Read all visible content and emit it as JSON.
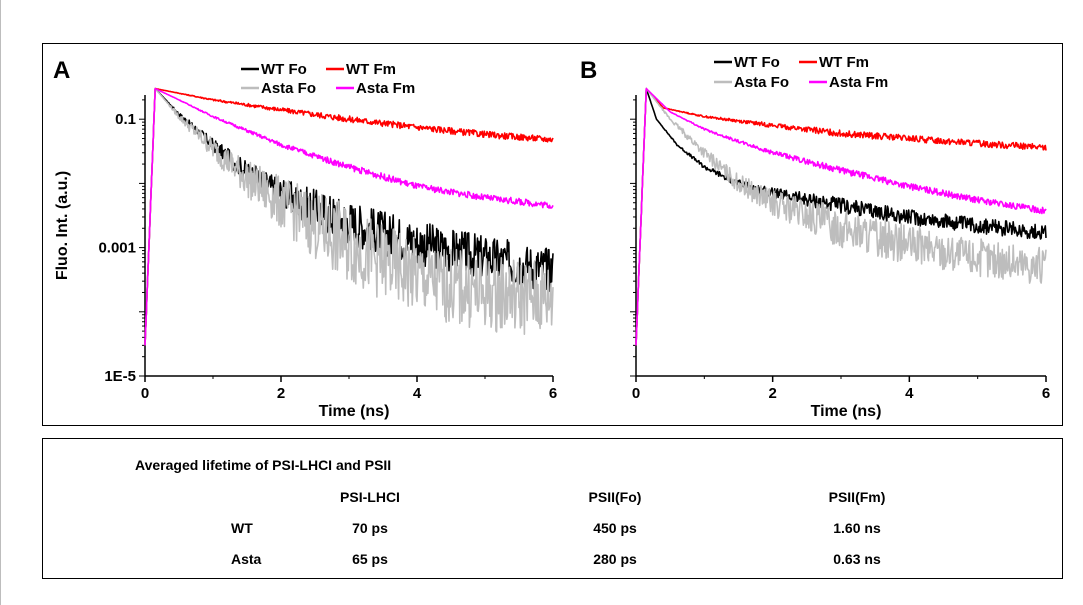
{
  "chart_data": [
    {
      "type": "line",
      "panel_label": "A",
      "xlabel": "Time (ns)",
      "ylabel": "Fluo. Int. (a.u.)",
      "xlim": [
        0,
        6
      ],
      "ylim": [
        1e-05,
        1
      ],
      "yscale": "log",
      "xticks": [
        0,
        2,
        4,
        6
      ],
      "yticks": [
        {
          "value": 1e-05,
          "label": "1E-5"
        },
        {
          "value": 0.001,
          "label": "0.001"
        },
        {
          "value": 0.1,
          "label": "0.1"
        }
      ],
      "legend_position": "top",
      "series": [
        {
          "name": "WT Fo",
          "color": "#000000",
          "noise": 0.35,
          "x": [
            0,
            0.15,
            0.5,
            1.0,
            1.5,
            2.0,
            2.5,
            3.0,
            3.5,
            4.0,
            4.5,
            5.0,
            5.5,
            6.0
          ],
          "y": [
            3e-05,
            0.3,
            0.12,
            0.04,
            0.015,
            0.007,
            0.004,
            0.0025,
            0.0017,
            0.0012,
            0.0009,
            0.0007,
            0.00055,
            0.00045
          ]
        },
        {
          "name": "WT Fm",
          "color": "#ff0000",
          "noise": 0.05,
          "x": [
            0,
            0.15,
            1.0,
            2.0,
            3.0,
            4.0,
            5.0,
            6.0
          ],
          "y": [
            3e-05,
            0.3,
            0.2,
            0.14,
            0.1,
            0.075,
            0.058,
            0.048
          ]
        },
        {
          "name": "Asta Fo",
          "color": "#bdbdbd",
          "noise": 0.6,
          "x": [
            0,
            0.15,
            0.5,
            1.0,
            1.5,
            2.0,
            2.5,
            3.0,
            3.5,
            4.0,
            4.5,
            5.0,
            5.5,
            6.0
          ],
          "y": [
            3e-05,
            0.3,
            0.11,
            0.035,
            0.012,
            0.005,
            0.0022,
            0.0011,
            0.0006,
            0.00035,
            0.00025,
            0.0002,
            0.00018,
            0.00016
          ]
        },
        {
          "name": "Asta Fm",
          "color": "#ff00ff",
          "noise": 0.05,
          "x": [
            0,
            0.15,
            0.5,
            1.0,
            2.0,
            3.0,
            4.0,
            5.0,
            6.0
          ],
          "y": [
            3e-05,
            0.3,
            0.2,
            0.11,
            0.04,
            0.018,
            0.009,
            0.006,
            0.0045
          ]
        }
      ]
    },
    {
      "type": "line",
      "panel_label": "B",
      "xlabel": "Time (ns)",
      "ylabel": "",
      "xlim": [
        0,
        6
      ],
      "ylim": [
        1e-05,
        1
      ],
      "yscale": "log",
      "xticks": [
        0,
        2,
        4,
        6
      ],
      "yticks": [],
      "legend_position": "top",
      "series": [
        {
          "name": "WT Fo",
          "color": "#000000",
          "noise": 0.12,
          "x": [
            0,
            0.15,
            0.3,
            0.6,
            1.0,
            1.5,
            2.0,
            3.0,
            4.0,
            5.0,
            6.0
          ],
          "y": [
            3e-05,
            0.3,
            0.1,
            0.04,
            0.018,
            0.01,
            0.007,
            0.0045,
            0.003,
            0.0022,
            0.0017
          ]
        },
        {
          "name": "WT Fm",
          "color": "#ff0000",
          "noise": 0.05,
          "x": [
            0,
            0.15,
            0.4,
            1.0,
            2.0,
            3.0,
            4.0,
            5.0,
            6.0
          ],
          "y": [
            3e-05,
            0.3,
            0.15,
            0.11,
            0.08,
            0.06,
            0.05,
            0.042,
            0.036
          ]
        },
        {
          "name": "Asta Fo",
          "color": "#bdbdbd",
          "noise": 0.3,
          "x": [
            0,
            0.15,
            0.5,
            1.0,
            1.5,
            2.0,
            3.0,
            4.0,
            5.0,
            6.0
          ],
          "y": [
            3e-05,
            0.3,
            0.1,
            0.03,
            0.01,
            0.005,
            0.002,
            0.0011,
            0.0007,
            0.0005
          ]
        },
        {
          "name": "Asta Fm",
          "color": "#ff00ff",
          "noise": 0.05,
          "x": [
            0,
            0.15,
            0.5,
            1.0,
            1.5,
            2.0,
            3.0,
            4.0,
            5.0,
            6.0
          ],
          "y": [
            3e-05,
            0.3,
            0.13,
            0.07,
            0.045,
            0.03,
            0.016,
            0.009,
            0.0055,
            0.0037
          ]
        }
      ]
    }
  ],
  "lifetime_table": {
    "title": "Averaged lifetime of PSI-LHCI and PSII",
    "columns": [
      "PSI-LHCI",
      "PSII(Fo)",
      "PSII(Fm)"
    ],
    "rows": [
      {
        "label": "WT",
        "values": [
          "70 ps",
          "450 ps",
          "1.60 ns"
        ]
      },
      {
        "label": "Asta",
        "values": [
          "65 ps",
          "280 ps",
          "0.63 ns"
        ]
      }
    ]
  }
}
